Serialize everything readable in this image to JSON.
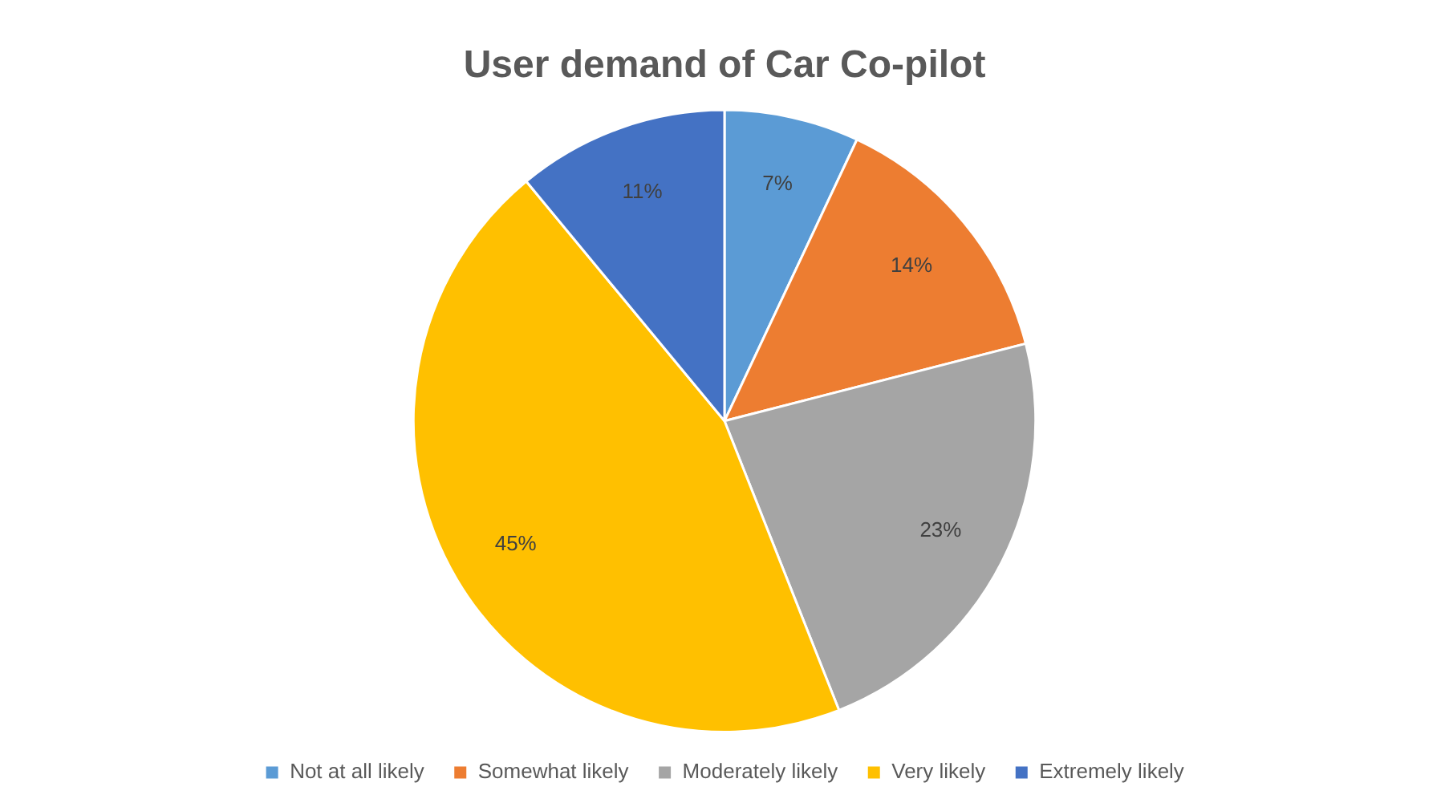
{
  "chart_data": {
    "type": "pie",
    "title": "User demand of Car Co-pilot",
    "categories": [
      "Not at all likely",
      "Somewhat likely",
      "Moderately likely",
      "Very likely",
      "Extremely likely"
    ],
    "values": [
      7,
      14,
      23,
      45,
      11
    ],
    "colors": [
      "#5b9bd5",
      "#ed7d31",
      "#a5a5a5",
      "#ffc000",
      "#4472c4"
    ],
    "value_labels": [
      "7%",
      "14%",
      "23%",
      "45%",
      "11%"
    ],
    "legend": "bottom"
  }
}
